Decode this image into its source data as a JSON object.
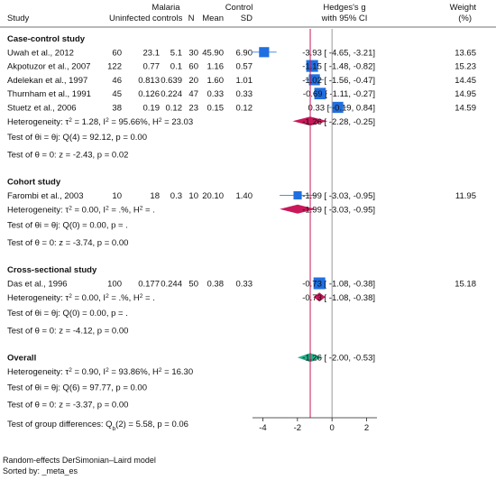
{
  "header": {
    "malaria": "Malaria",
    "control": "Control",
    "study": "Study",
    "uninfected": "Uninfected controls",
    "n": "N",
    "mean": "Mean",
    "sd": "SD",
    "effect_title": "Hedges's g",
    "effect_sub": "with 95% CI",
    "weight_title": "Weight",
    "weight_sub": "(%)"
  },
  "colors": {
    "study_marker": "#1f6fe0",
    "ci_line": "#4a90e2",
    "subgroup_diamond": "#c8195a",
    "overall_diamond": "#27b08a",
    "ref_line_overall": "#c8195a",
    "null_line": "#999999"
  },
  "chart_data": {
    "type": "forest",
    "x_ticks": [
      -4,
      -2,
      0,
      2
    ],
    "xlim": [
      -4.6,
      2.6
    ],
    "null_value": 0,
    "overall_value": -1.26,
    "groups": [
      {
        "title": "Case-control study",
        "studies": [
          {
            "study": "Uwah et al., 2012",
            "n1": "60",
            "m1": "23.1",
            "sd1": "5.1",
            "n2": "30",
            "m2": "45.90",
            "sd2": "6.90",
            "g": -3.93,
            "lo": -4.65,
            "hi": -3.21,
            "ci_text": "-3.93 [ -4.65, -3.21]",
            "weight": "13.65"
          },
          {
            "study": "Akpotuzor et al., 2007",
            "n1": "122",
            "m1": "0.77",
            "sd1": "0.1",
            "n2": "60",
            "m2": "1.16",
            "sd2": "0.57",
            "g": -1.15,
            "lo": -1.48,
            "hi": -0.82,
            "ci_text": "-1.15 [ -1.48, -0.82]",
            "weight": "15.23"
          },
          {
            "study": "Adelekan et al., 1997",
            "n1": "46",
            "m1": "0.813",
            "sd1": "0.639",
            "n2": "20",
            "m2": "1.60",
            "sd2": "1.01",
            "g": -1.02,
            "lo": -1.56,
            "hi": -0.47,
            "ci_text": "-1.02 [ -1.56, -0.47]",
            "weight": "14.45"
          },
          {
            "study": "Thurnham et al., 1991",
            "n1": "45",
            "m1": "0.126",
            "sd1": "0.224",
            "n2": "47",
            "m2": "0.33",
            "sd2": "0.33",
            "g": -0.69,
            "lo": -1.11,
            "hi": -0.27,
            "ci_text": "-0.69 [ -1.11, -0.27]",
            "weight": "14.95"
          },
          {
            "study": "Stuetz et al., 2006",
            "n1": "38",
            "m1": "0.19",
            "sd1": "0.12",
            "n2": "23",
            "m2": "0.15",
            "sd2": "0.12",
            "g": 0.33,
            "lo": -0.19,
            "hi": 0.84,
            "ci_text": "0.33 [ -0.19, 0.84]",
            "weight": "14.59"
          }
        ],
        "heterogeneity_prefix": "Heterogeneity: τ",
        "heterogeneity_mid": " = 1.28, I",
        "heterogeneity_mid2": " = 95.66%, H",
        "heterogeneity_end": " = 23.03",
        "pooled": {
          "g": -1.26,
          "lo": -2.28,
          "hi": -0.25,
          "ci_text": "-1.26 [ -2.28, -0.25]"
        },
        "test_homog": "Test of θi = θj: Q(4) = 92.12, p = 0.00",
        "test_zero": "Test of θ = 0: z = -2.43, p = 0.02"
      },
      {
        "title": "Cohort study",
        "studies": [
          {
            "study": "Farombi et al., 2003",
            "n1": "10",
            "m1": "18",
            "sd1": "0.3",
            "n2": "10",
            "m2": "20.10",
            "sd2": "1.40",
            "g": -1.99,
            "lo": -3.03,
            "hi": -0.95,
            "ci_text": "-1.99 [ -3.03, -0.95]",
            "weight": "11.95"
          }
        ],
        "heterogeneity_prefix": "Heterogeneity: τ",
        "heterogeneity_mid": " = 0.00, I",
        "heterogeneity_mid2": " = .%, H",
        "heterogeneity_end": " = .",
        "pooled": {
          "g": -1.99,
          "lo": -3.03,
          "hi": -0.95,
          "ci_text": "-1.99 [ -3.03, -0.95]"
        },
        "test_homog": "Test of θi = θj: Q(0) = 0.00, p = .",
        "test_zero": "Test of θ = 0: z = -3.74, p = 0.00"
      },
      {
        "title": "Cross-sectional study",
        "studies": [
          {
            "study": "Das et al., 1996",
            "n1": "100",
            "m1": "0.177",
            "sd1": "0.244",
            "n2": "50",
            "m2": "0.38",
            "sd2": "0.33",
            "g": -0.73,
            "lo": -1.08,
            "hi": -0.38,
            "ci_text": "-0.73 [ -1.08, -0.38]",
            "weight": "15.18"
          }
        ],
        "heterogeneity_prefix": "Heterogeneity: τ",
        "heterogeneity_mid": " = 0.00, I",
        "heterogeneity_mid2": " = .%, H",
        "heterogeneity_end": " = .",
        "pooled": {
          "g": -0.73,
          "lo": -1.08,
          "hi": -0.38,
          "ci_text": "-0.73 [ -1.08, -0.38]"
        },
        "test_homog": "Test of θi = θj: Q(0) = 0.00, p = .",
        "test_zero": "Test of θ = 0: z = -4.12, p = 0.00"
      }
    ],
    "overall": {
      "title": "Overall",
      "g": -1.26,
      "lo": -2.0,
      "hi": -0.53,
      "ci_text": "-1.26 [ -2.00, -0.53]",
      "heterogeneity_prefix": "Heterogeneity: τ",
      "heterogeneity_mid": " = 0.90, I",
      "heterogeneity_mid2": " = 93.86%, H",
      "heterogeneity_end": " = 16.30",
      "test_homog": "Test of θi = θj: Q(6) = 97.77, p = 0.00",
      "test_zero": "Test of θ = 0: z = -3.37, p = 0.00",
      "group_diff": "Test of group differences: Q",
      "group_diff_sub": "b",
      "group_diff_end": "(2) = 5.58, p = 0.06"
    }
  },
  "footer": {
    "line1": "Random-effects DerSimonian–Laird model",
    "line2": "Sorted by: _meta_es"
  }
}
